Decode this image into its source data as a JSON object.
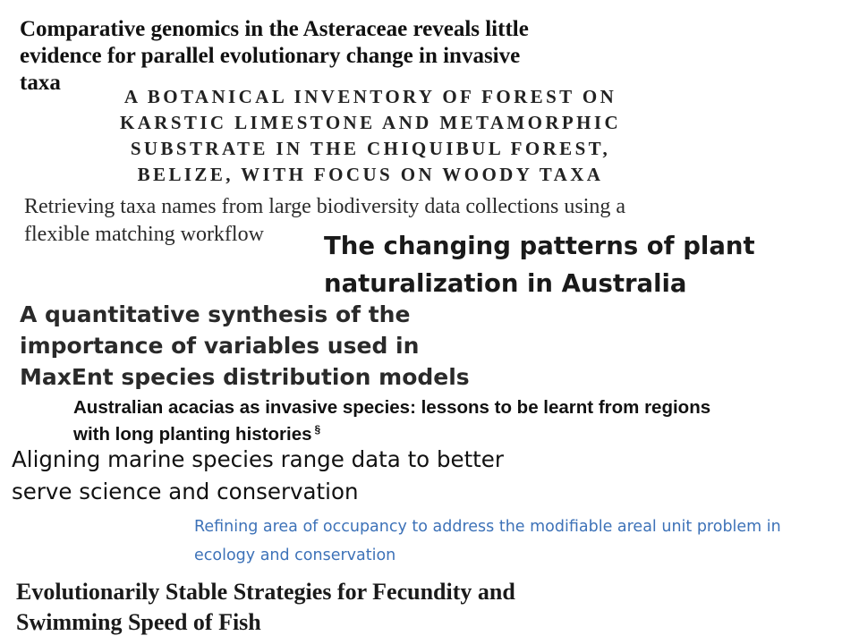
{
  "titles": [
    {
      "lines": [
        "Comparative genomics in the Asteraceae reveals little",
        "evidence for parallel evolutionary change in invasive",
        "taxa"
      ]
    },
    {
      "lines": [
        "A BOTANICAL INVENTORY OF FOREST ON",
        "KARSTIC LIMESTONE AND METAMORPHIC",
        "SUBSTRATE IN THE CHIQUIBUL FOREST,",
        "BELIZE, WITH FOCUS ON WOODY TAXA"
      ]
    },
    {
      "lines": [
        "Retrieving taxa names from large biodiversity data collections using a",
        "flexible matching workflow"
      ]
    },
    {
      "lines": [
        "The changing patterns of plant",
        "naturalization in Australia"
      ]
    },
    {
      "lines": [
        "A quantitative synthesis of the",
        "importance of variables used in",
        "MaxEnt species distribution models"
      ]
    },
    {
      "lines": [
        "Australian acacias as invasive species: lessons to be learnt from regions",
        "with long planting histories"
      ],
      "footnote_mark": "§"
    },
    {
      "lines": [
        "Aligning marine species range data to better",
        "serve science and conservation"
      ]
    },
    {
      "lines": [
        "Refining area of occupancy to address the modifiable areal unit problem in",
        "ecology and conservation"
      ],
      "color": "#3d72b8"
    },
    {
      "lines": [
        "Evolutionarily Stable Strategies for Fecundity and",
        "Swimming Speed of Fish"
      ]
    }
  ]
}
